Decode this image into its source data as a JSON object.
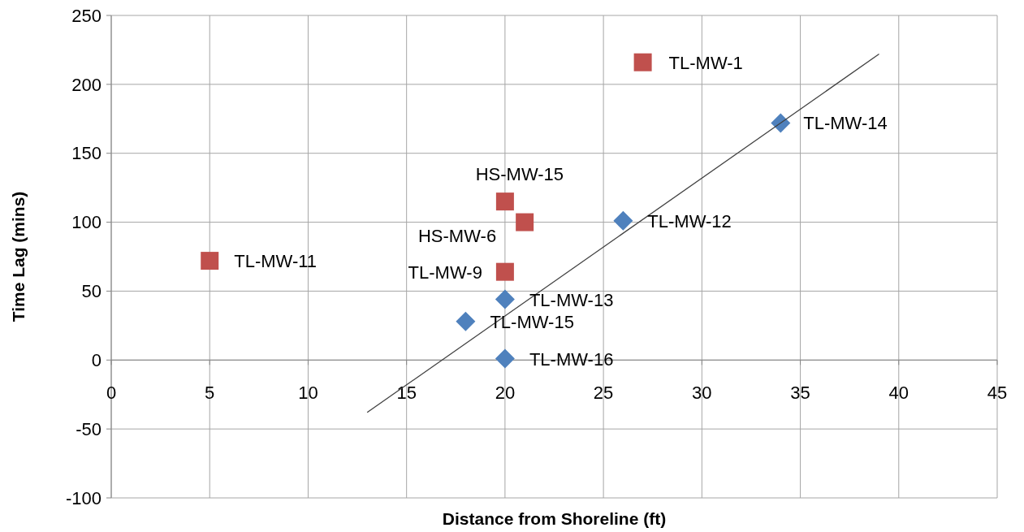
{
  "chart_data": {
    "type": "scatter",
    "xlabel": "Distance from Shoreline (ft)",
    "ylabel": "Time Lag (mins)",
    "xlim": [
      0,
      45
    ],
    "ylim": [
      -100,
      250
    ],
    "xticks": [
      0,
      5,
      10,
      15,
      20,
      25,
      30,
      35,
      40,
      45
    ],
    "yticks": [
      -100,
      -50,
      0,
      50,
      100,
      150,
      200,
      250
    ],
    "grid": true,
    "series": [
      {
        "color": "#4f81bd",
        "marker": "diamond",
        "x": [
          34,
          26,
          20,
          18,
          20
        ],
        "values": [
          172,
          101,
          44,
          28,
          1
        ]
      },
      {
        "color": "#c0504d",
        "marker": "square",
        "x": [
          27,
          20,
          21,
          20,
          5
        ],
        "values": [
          216,
          115,
          100,
          64,
          72
        ]
      },
      {
        "type": "line",
        "color": "#404040",
        "marker": "none",
        "x": [
          13,
          39
        ],
        "values": [
          -38,
          222
        ]
      }
    ],
    "annotations": [
      {
        "text": "TL-MW-14",
        "x": 34,
        "y": 172
      },
      {
        "text": "TL-MW-12",
        "x": 26,
        "y": 101
      },
      {
        "text": "TL-MW-13",
        "x": 20,
        "y": 44
      },
      {
        "text": "TL-MW-15",
        "x": 18,
        "y": 28
      },
      {
        "text": "TL-MW-16",
        "x": 20,
        "y": 1
      },
      {
        "text": "TL-MW-1",
        "x": 27,
        "y": 216
      },
      {
        "text": "HS-MW-15",
        "x": 20,
        "y": 115
      },
      {
        "text": "HS-MW-6",
        "x": 21,
        "y": 100
      },
      {
        "text": "TL-MW-9",
        "x": 20,
        "y": 64
      },
      {
        "text": "TL-MW-11",
        "x": 5,
        "y": 72
      }
    ]
  }
}
